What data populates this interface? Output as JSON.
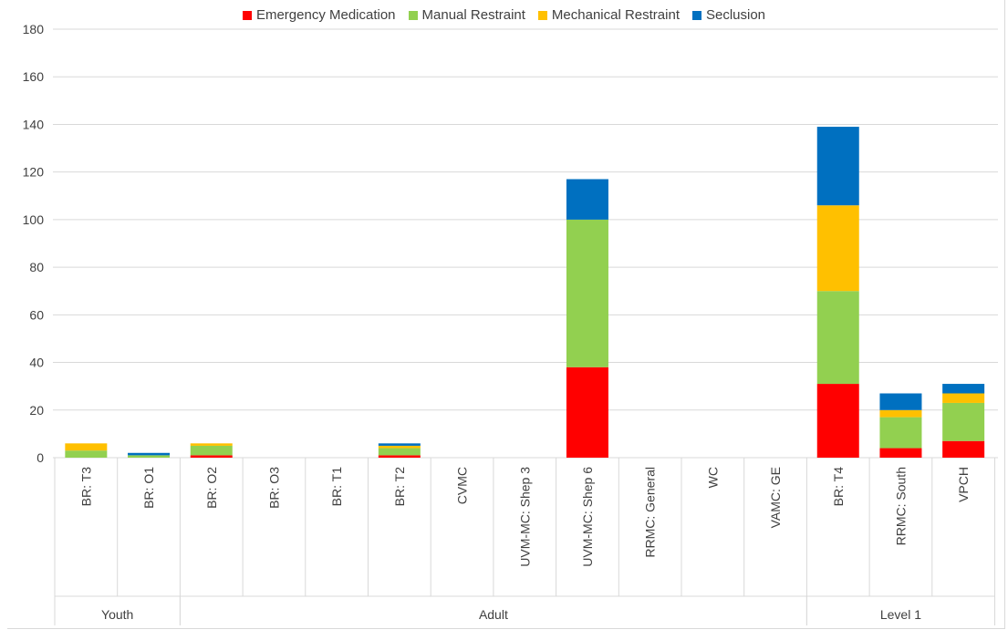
{
  "chart_data": {
    "type": "bar",
    "stacked": true,
    "title": "",
    "xlabel": "",
    "ylabel": "",
    "ylim": [
      0,
      180
    ],
    "yticks": [
      0,
      20,
      40,
      60,
      80,
      100,
      120,
      140,
      160,
      180
    ],
    "grid": true,
    "legend_position": "top",
    "categories": [
      "BR: T3",
      "BR: O1",
      "BR: O2",
      "BR: O3",
      "BR: T1",
      "BR: T2",
      "CVMC",
      "UVM-MC: Shep 3",
      "UVM-MC: Shep 6",
      "RRMC: General",
      "WC",
      "VAMC: GE",
      "BR: T4",
      "RRMC: South",
      "VPCH"
    ],
    "groups": [
      {
        "label": "Youth",
        "start": 0,
        "end": 1
      },
      {
        "label": "Adult",
        "start": 2,
        "end": 11
      },
      {
        "label": "Level 1",
        "start": 12,
        "end": 14
      }
    ],
    "series": [
      {
        "name": "Emergency Medication",
        "color": "#ff0000",
        "values": [
          0,
          0,
          1,
          0,
          0,
          1,
          0,
          0,
          38,
          0,
          0,
          0,
          31,
          4,
          7
        ]
      },
      {
        "name": "Manual Restraint",
        "color": "#92d050",
        "values": [
          3,
          1,
          4,
          0,
          0,
          3,
          0,
          0,
          62,
          0,
          0,
          0,
          39,
          13,
          16
        ]
      },
      {
        "name": "Mechanical Restraint",
        "color": "#ffc000",
        "values": [
          3,
          0,
          1,
          0,
          0,
          1,
          0,
          0,
          0,
          0,
          0,
          0,
          36,
          3,
          4
        ]
      },
      {
        "name": "Seclusion",
        "color": "#0070c0",
        "values": [
          0,
          1,
          0,
          0,
          0,
          1,
          0,
          0,
          17,
          0,
          0,
          0,
          33,
          7,
          4
        ]
      }
    ]
  }
}
